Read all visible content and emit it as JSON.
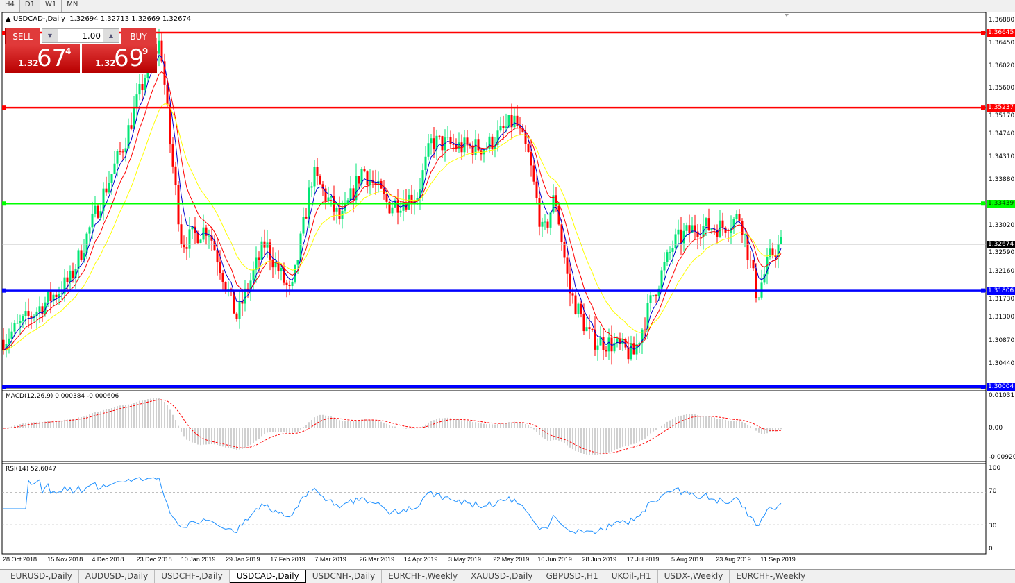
{
  "timeframes": [
    "H4",
    "D1",
    "W1",
    "MN"
  ],
  "active_timeframe": "D1",
  "header": {
    "symbol": "USDCAD-,Daily",
    "ohlc": "1.32694 1.32713 1.32669 1.32674"
  },
  "trade": {
    "sell_label": "SELL",
    "buy_label": "BUY",
    "lot": "1.00",
    "sell_small": "1.32",
    "sell_big": "67",
    "sell_pip": "4",
    "buy_small": "1.32",
    "buy_big": "69",
    "buy_pip": "9"
  },
  "price_axis": [
    "1.36880",
    "1.36450",
    "1.36020",
    "1.35600",
    "1.35170",
    "1.34740",
    "1.34310",
    "1.33880",
    "1.33020",
    "1.32590",
    "1.32160",
    "1.31730",
    "1.31300",
    "1.30870",
    "1.30440"
  ],
  "hlines": [
    {
      "price": "1.36645",
      "color": "#ff0000"
    },
    {
      "price": "1.35237",
      "color": "#ff0000"
    },
    {
      "price": "1.33439",
      "color": "#00ff00"
    },
    {
      "price": "1.31806",
      "color": "#0000ff"
    },
    {
      "price": "1.30004",
      "color": "#0000ff"
    }
  ],
  "current_price": "1.32674",
  "macd": {
    "label": "MACD(12,26,9) 0.000384 -0.000606",
    "axis": [
      "0.010311",
      "0.00",
      "-0.009203"
    ]
  },
  "rsi": {
    "label": "RSI(14) 52.6047",
    "axis": [
      "100",
      "70",
      "30",
      "0"
    ]
  },
  "date_axis": [
    "28 Oct 2018",
    "15 Nov 2018",
    "4 Dec 2018",
    "23 Dec 2018",
    "10 Jan 2019",
    "29 Jan 2019",
    "17 Feb 2019",
    "7 Mar 2019",
    "26 Mar 2019",
    "14 Apr 2019",
    "3 May 2019",
    "22 May 2019",
    "10 Jun 2019",
    "28 Jun 2019",
    "17 Jul 2019",
    "5 Aug 2019",
    "23 Aug 2019",
    "11 Sep 2019"
  ],
  "tabs": [
    "EURUSD-,Daily",
    "AUDUSD-,Daily",
    "USDCHF-,Daily",
    "USDCAD-,Daily",
    "USDCNH-,Daily",
    "EURCHF-,Weekly",
    "XAUUSD-,Daily",
    "GBPUSD-,H1",
    "UKOil-,H1",
    "USDX-,Weekly",
    "EURCHF-,Weekly"
  ],
  "active_tab": "USDCAD-,Daily",
  "colors": {
    "bull": "#00e676",
    "bear": "#ff0000",
    "ma_fast": "#0000cc",
    "ma_mid": "#ff0000",
    "ma_slow": "#ffff00",
    "rsi": "#1e90ff"
  },
  "chart_data": {
    "type": "candlestick",
    "approx_closes": [
      [
        "2018-10-28",
        1.3088
      ],
      [
        "2018-11-10",
        1.314
      ],
      [
        "2018-11-25",
        1.32
      ],
      [
        "2018-12-07",
        1.334
      ],
      [
        "2018-12-18",
        1.346
      ],
      [
        "2018-12-27",
        1.359
      ],
      [
        "2019-01-02",
        1.365
      ],
      [
        "2019-01-06",
        1.346
      ],
      [
        "2019-01-11",
        1.327
      ],
      [
        "2019-01-22",
        1.33
      ],
      [
        "2019-02-03",
        1.313
      ],
      [
        "2019-02-15",
        1.327
      ],
      [
        "2019-02-26",
        1.317
      ],
      [
        "2019-03-07",
        1.34
      ],
      [
        "2019-03-19",
        1.331
      ],
      [
        "2019-03-28",
        1.341
      ],
      [
        "2019-04-08",
        1.334
      ],
      [
        "2019-04-20",
        1.336
      ],
      [
        "2019-04-26",
        1.346
      ],
      [
        "2019-05-08",
        1.345
      ],
      [
        "2019-05-19",
        1.345
      ],
      [
        "2019-05-31",
        1.35
      ],
      [
        "2019-06-06",
        1.343
      ],
      [
        "2019-06-12",
        1.328
      ],
      [
        "2019-06-17",
        1.336
      ],
      [
        "2019-06-23",
        1.318
      ],
      [
        "2019-07-02",
        1.309
      ],
      [
        "2019-07-11",
        1.308
      ],
      [
        "2019-07-20",
        1.306
      ],
      [
        "2019-07-28",
        1.317
      ],
      [
        "2019-08-06",
        1.327
      ],
      [
        "2019-08-15",
        1.33
      ],
      [
        "2019-08-26",
        1.33
      ],
      [
        "2019-09-03",
        1.332
      ],
      [
        "2019-09-10",
        1.317
      ],
      [
        "2019-09-16",
        1.325
      ],
      [
        "2019-09-20",
        1.3267
      ]
    ]
  }
}
